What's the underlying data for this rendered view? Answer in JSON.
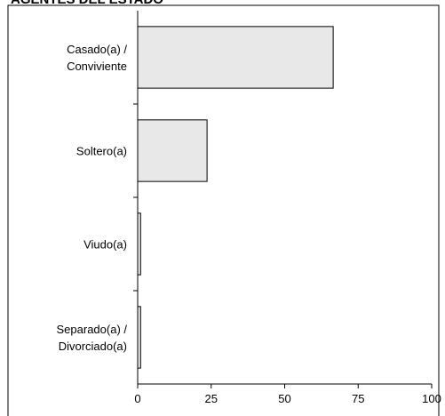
{
  "chart_data": {
    "type": "barh",
    "title": "AGENTES DEL ESTADO",
    "categories": [
      "Casado(a) /\nConviviente",
      "Soltero(a)",
      "Viudo(a)",
      "Separado(a) /\nDivorciado(a)"
    ],
    "values": [
      66.5,
      23.6,
      1,
      1
    ],
    "color": "#e8e8e8",
    "xlim": [
      0,
      100
    ],
    "xticks": [
      0,
      25,
      50,
      75,
      100
    ]
  }
}
